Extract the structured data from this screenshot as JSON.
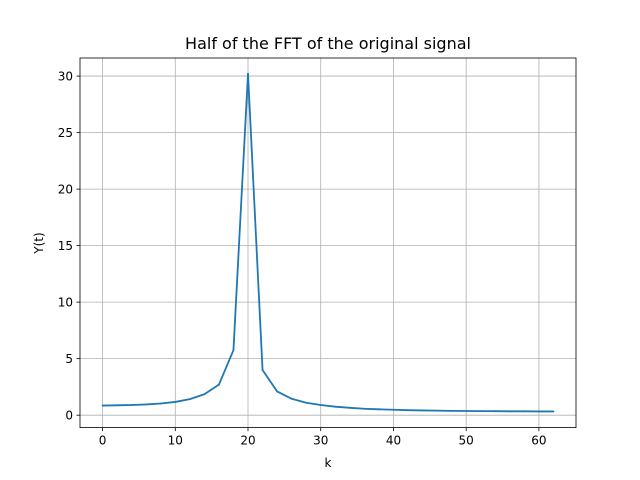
{
  "chart_data": {
    "type": "line",
    "title": "Half of the FFT of the original signal",
    "xlabel": "k",
    "ylabel": "Y(t)",
    "xlim": [
      -3.1,
      65.1
    ],
    "ylim": [
      -1.1,
      31.6
    ],
    "xticks": [
      0,
      10,
      20,
      30,
      40,
      50,
      60
    ],
    "yticks": [
      0,
      5,
      10,
      15,
      20,
      25,
      30
    ],
    "grid": true,
    "series": [
      {
        "color": "#1f77b4",
        "x": [
          0,
          2,
          4,
          6,
          8,
          10,
          12,
          14,
          16,
          18,
          20,
          22,
          24,
          26,
          28,
          30,
          32,
          34,
          36,
          38,
          40,
          42,
          44,
          46,
          48,
          50,
          52,
          54,
          56,
          58,
          60,
          62
        ],
        "y": [
          0.85,
          0.87,
          0.9,
          0.95,
          1.03,
          1.17,
          1.42,
          1.85,
          2.7,
          5.75,
          30.2,
          4.0,
          2.1,
          1.45,
          1.1,
          0.9,
          0.75,
          0.65,
          0.57,
          0.52,
          0.48,
          0.44,
          0.42,
          0.4,
          0.38,
          0.37,
          0.36,
          0.35,
          0.34,
          0.34,
          0.33,
          0.33
        ]
      }
    ]
  }
}
